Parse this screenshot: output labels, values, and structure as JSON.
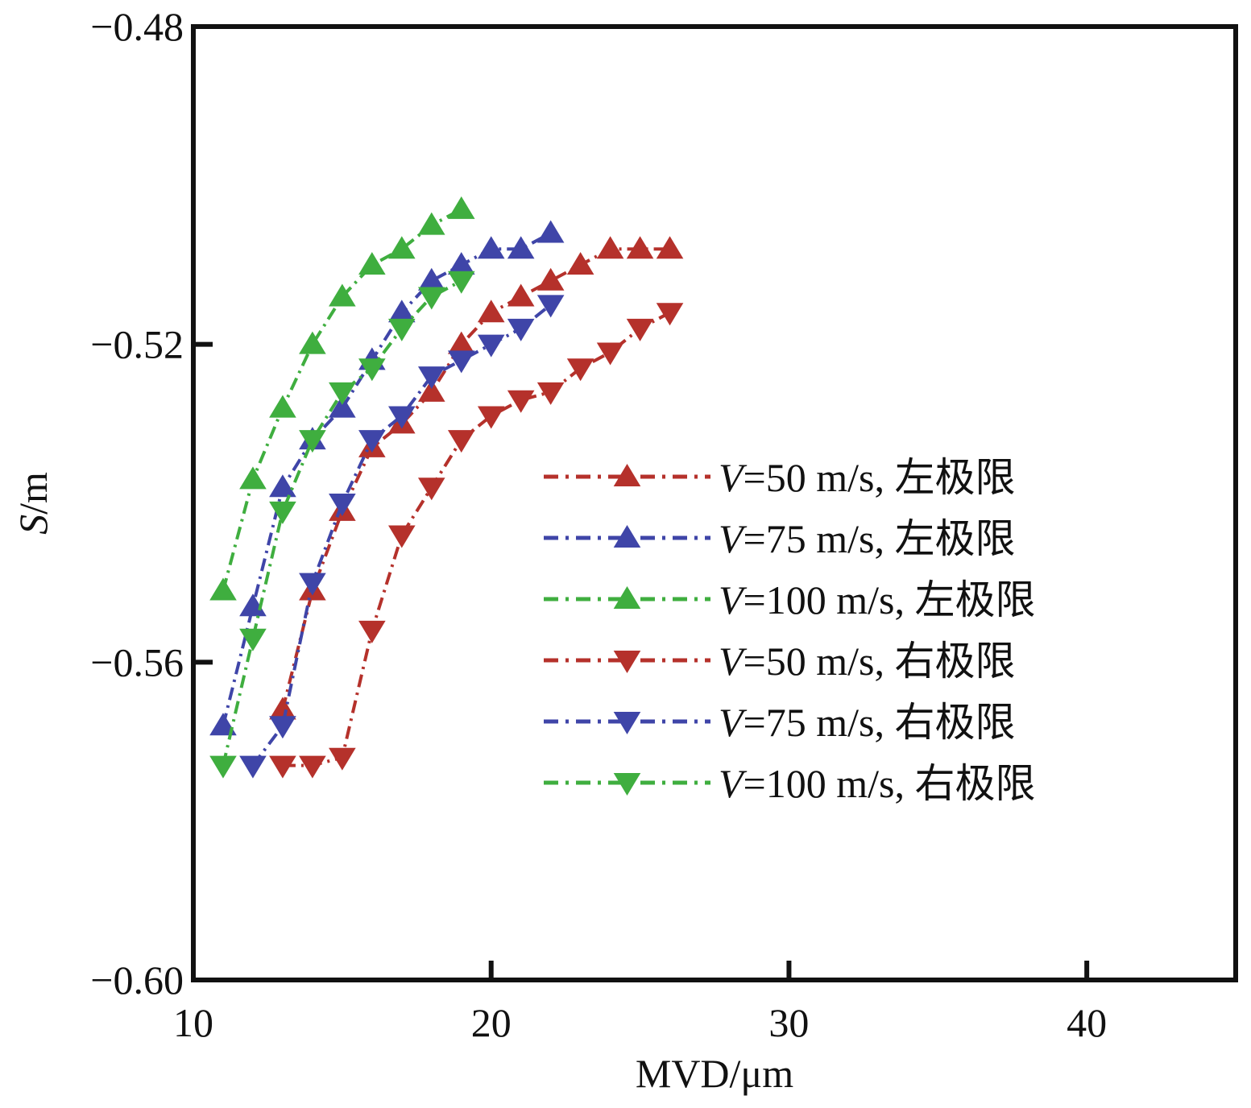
{
  "chart_data": {
    "type": "line",
    "title": "",
    "xlabel": "MVD/μm",
    "ylabel_italic": "S",
    "ylabel_unit": "/m",
    "xlim": [
      10,
      45
    ],
    "ylim": [
      -0.6,
      -0.48
    ],
    "xticks": [
      10,
      20,
      30,
      40
    ],
    "xtick_labels": [
      "10",
      "20",
      "30",
      "40"
    ],
    "yticks": [
      -0.48,
      -0.52,
      -0.56,
      -0.6
    ],
    "ytick_labels": [
      "−0.48",
      "−0.52",
      "−0.56",
      "−0.60"
    ],
    "grid": false,
    "legend_position": "center-right",
    "series": [
      {
        "name": "V=50 m/s, 左极限",
        "legend_italic": "V",
        "legend_rest": "=50 m/s, 左极限",
        "color": "#b5312b",
        "marker": "triangle-up",
        "x": [
          13,
          14,
          15,
          16,
          17,
          18,
          19,
          20,
          21,
          22,
          23,
          24,
          25,
          26
        ],
        "y": [
          -0.566,
          -0.551,
          -0.541,
          -0.533,
          -0.53,
          -0.526,
          -0.52,
          -0.516,
          -0.514,
          -0.512,
          -0.51,
          -0.508,
          -0.508,
          -0.508
        ]
      },
      {
        "name": "V=75 m/s, 左极限",
        "legend_italic": "V",
        "legend_rest": "=75 m/s, 左极限",
        "color": "#3f45a8",
        "marker": "triangle-up",
        "x": [
          11,
          12,
          13,
          14,
          15,
          16,
          17,
          18,
          19,
          20,
          21,
          22
        ],
        "y": [
          -0.568,
          -0.553,
          -0.538,
          -0.532,
          -0.528,
          -0.522,
          -0.516,
          -0.512,
          -0.51,
          -0.508,
          -0.508,
          -0.506
        ]
      },
      {
        "name": "V=100 m/s, 左极限",
        "legend_italic": "V",
        "legend_rest": "=100 m/s, 左极限",
        "color": "#3fae3f",
        "marker": "triangle-up",
        "x": [
          11,
          12,
          13,
          14,
          15,
          16,
          17,
          18,
          19
        ],
        "y": [
          -0.551,
          -0.537,
          -0.528,
          -0.52,
          -0.514,
          -0.51,
          -0.508,
          -0.505,
          -0.503
        ]
      },
      {
        "name": "V=50 m/s, 右极限",
        "legend_italic": "V",
        "legend_rest": "=50 m/s, 右极限",
        "color": "#b5312b",
        "marker": "triangle-down",
        "x": [
          13,
          14,
          15,
          16,
          17,
          18,
          19,
          20,
          21,
          22,
          23,
          24,
          25,
          26
        ],
        "y": [
          -0.573,
          -0.573,
          -0.572,
          -0.556,
          -0.544,
          -0.538,
          -0.532,
          -0.529,
          -0.527,
          -0.526,
          -0.523,
          -0.521,
          -0.518,
          -0.516
        ]
      },
      {
        "name": "V=75 m/s, 右极限",
        "legend_italic": "V",
        "legend_rest": "=75 m/s, 右极限",
        "color": "#3f45a8",
        "marker": "triangle-down",
        "x": [
          12,
          13,
          14,
          15,
          16,
          17,
          18,
          19,
          20,
          21,
          22
        ],
        "y": [
          -0.573,
          -0.568,
          -0.55,
          -0.54,
          -0.532,
          -0.529,
          -0.524,
          -0.522,
          -0.52,
          -0.518,
          -0.515
        ]
      },
      {
        "name": "V=100 m/s, 右极限",
        "legend_italic": "V",
        "legend_rest": "=100 m/s, 右极限",
        "color": "#3fae3f",
        "marker": "triangle-down",
        "x": [
          11,
          12,
          13,
          14,
          15,
          16,
          17,
          18,
          19
        ],
        "y": [
          -0.573,
          -0.557,
          -0.541,
          -0.532,
          -0.526,
          -0.523,
          -0.518,
          -0.514,
          -0.512
        ]
      }
    ]
  }
}
